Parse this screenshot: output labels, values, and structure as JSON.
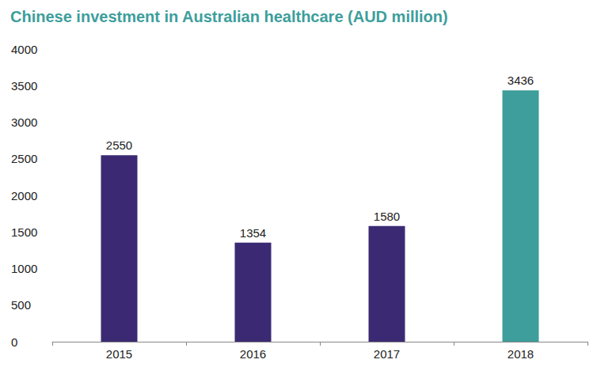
{
  "chart_data": {
    "type": "bar",
    "title": "Chinese investment in Australian healthcare (AUD million)",
    "categories": [
      "2015",
      "2016",
      "2017",
      "2018"
    ],
    "values": [
      2550,
      1354,
      1580,
      3436
    ],
    "colors": [
      "#3b2a73",
      "#3b2a73",
      "#3b2a73",
      "#3d9e9b"
    ],
    "ylim": [
      0,
      4000
    ],
    "yticks": [
      0,
      500,
      1000,
      1500,
      2000,
      2500,
      3000,
      3500,
      4000
    ],
    "grid": false,
    "data_labels": true
  }
}
